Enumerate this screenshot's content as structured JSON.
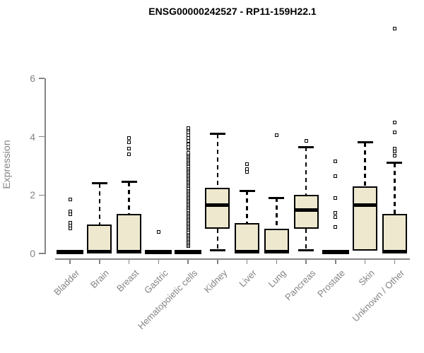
{
  "title": "ENSG00000242527 - RP11-159H22.1",
  "chart_data": {
    "type": "boxplot",
    "title": "ENSG00000242527 - RP11-159H22.1",
    "xlabel": "",
    "ylabel": "Expression",
    "ylim": [
      0,
      6
    ],
    "yticks": [
      0,
      2,
      4,
      6
    ],
    "grid": false,
    "legend": "none",
    "colors": {
      "box_fill": "#EDE8CE",
      "box_stroke": "#000000",
      "axis": "#848484",
      "title": "#000000"
    },
    "categories": [
      "Bladder",
      "Brain",
      "Breast",
      "Gastric",
      "Hematopoietic cells",
      "Kidney",
      "Liver",
      "Lung",
      "Pancreas",
      "Prostate",
      "Skin",
      "Unknown / Other"
    ],
    "boxes": [
      {
        "name": "Bladder",
        "collapsed": true,
        "q1": 0,
        "median": 0,
        "q3": 0,
        "whisker_low": 0,
        "whisker_high": 0,
        "outliers": [
          0.85,
          0.95,
          1.05,
          1.35,
          1.45,
          1.85
        ]
      },
      {
        "name": "Brain",
        "collapsed": false,
        "q1": 0,
        "median": 0.07,
        "q3": 1.0,
        "whisker_low": 0,
        "whisker_high": 2.4,
        "outliers": []
      },
      {
        "name": "Breast",
        "collapsed": false,
        "q1": 0,
        "median": 0.07,
        "q3": 1.35,
        "whisker_low": 0,
        "whisker_high": 2.45,
        "outliers": [
          3.4,
          3.6,
          3.8,
          3.95
        ]
      },
      {
        "name": "Gastric",
        "collapsed": true,
        "q1": 0,
        "median": 0,
        "q3": 0,
        "whisker_low": 0,
        "whisker_high": 0,
        "outliers": [
          0.75
        ]
      },
      {
        "name": "Hematopoietic cells",
        "collapsed": true,
        "q1": 0,
        "median": 0,
        "q3": 0,
        "whisker_low": 0,
        "whisker_high": 0,
        "outliers": [
          0.25,
          0.3,
          0.35,
          0.4,
          0.45,
          0.5,
          0.55,
          0.6,
          0.65,
          0.7,
          0.75,
          0.8,
          0.85,
          0.9,
          0.95,
          1.0,
          1.05,
          1.1,
          1.15,
          1.2,
          1.25,
          1.3,
          1.35,
          1.4,
          1.45,
          1.5,
          1.55,
          1.6,
          1.65,
          1.7,
          1.75,
          1.8,
          1.85,
          1.9,
          1.95,
          2.0,
          2.05,
          2.1,
          2.15,
          2.2,
          2.25,
          2.3,
          2.35,
          2.4,
          2.45,
          2.5,
          2.55,
          2.6,
          2.65,
          2.7,
          2.75,
          2.8,
          2.85,
          2.9,
          2.95,
          3.0,
          3.05,
          3.1,
          3.15,
          3.2,
          3.25,
          3.3,
          3.35,
          3.4,
          3.45,
          3.6,
          3.65,
          3.75,
          3.85,
          3.95,
          4.05,
          4.15,
          4.25,
          4.3
        ]
      },
      {
        "name": "Kidney",
        "collapsed": false,
        "q1": 0.85,
        "median": 1.65,
        "q3": 2.25,
        "whisker_low": 0.12,
        "whisker_high": 4.1,
        "outliers": []
      },
      {
        "name": "Liver",
        "collapsed": false,
        "q1": 0,
        "median": 0.07,
        "q3": 1.05,
        "whisker_low": 0,
        "whisker_high": 2.15,
        "outliers": [
          2.8,
          2.9,
          3.05
        ]
      },
      {
        "name": "Lung",
        "collapsed": false,
        "q1": 0,
        "median": 0.07,
        "q3": 0.85,
        "whisker_low": 0,
        "whisker_high": 1.9,
        "outliers": [
          4.05
        ]
      },
      {
        "name": "Pancreas",
        "collapsed": false,
        "q1": 0.85,
        "median": 1.5,
        "q3": 2.0,
        "whisker_low": 0.12,
        "whisker_high": 3.65,
        "outliers": [
          3.85
        ]
      },
      {
        "name": "Prostate",
        "collapsed": true,
        "q1": 0,
        "median": 0,
        "q3": 0,
        "whisker_low": 0,
        "whisker_high": 0,
        "outliers": [
          0.9,
          1.25,
          1.4,
          1.9,
          2.65,
          3.15
        ]
      },
      {
        "name": "Skin",
        "collapsed": false,
        "q1": 0.1,
        "median": 1.65,
        "q3": 2.3,
        "whisker_low": 0.1,
        "whisker_high": 3.8,
        "outliers": []
      },
      {
        "name": "Unknown / Other",
        "collapsed": false,
        "q1": 0,
        "median": 0.07,
        "q3": 1.35,
        "whisker_low": 0,
        "whisker_high": 3.1,
        "outliers": [
          3.35,
          3.5,
          3.6,
          4.15,
          4.5,
          7.7
        ]
      }
    ]
  }
}
